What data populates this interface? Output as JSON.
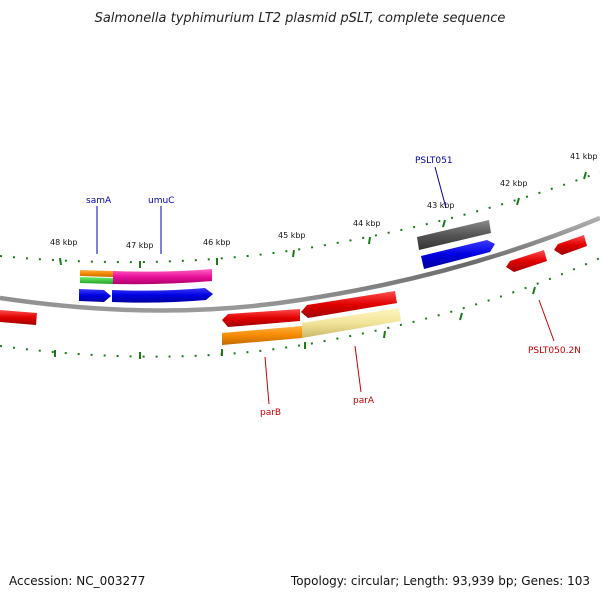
{
  "title": "Salmonella typhimurium LT2 plasmid pSLT, complete sequence",
  "colors": {
    "backbone": "#7a7a7a",
    "ticks": "#1a7a1a",
    "label_forward": "#0000aa",
    "label_reverse": "#cc0000"
  },
  "scale_labels": [
    "41 kbp",
    "42 kbp",
    "43 kbp",
    "44 kbp",
    "45 kbp",
    "46 kbp",
    "47 kbp",
    "48 kbp"
  ],
  "genes": [
    {
      "name": "samA",
      "strand": "forward",
      "color": "#0000aa"
    },
    {
      "name": "umuC",
      "strand": "forward",
      "color": "#0000aa"
    },
    {
      "name": "PSLT051",
      "strand": "forward",
      "color": "#0000aa"
    },
    {
      "name": "parB",
      "strand": "reverse",
      "color": "#cc0000"
    },
    {
      "name": "parA",
      "strand": "reverse",
      "color": "#cc0000"
    },
    {
      "name": "PSLT050.2N",
      "strand": "reverse",
      "color": "#cc0000"
    }
  ],
  "footer": {
    "accession": "Accession: NC_003277",
    "summary": "Topology: circular; Length: 93,939 bp; Genes: 103"
  }
}
